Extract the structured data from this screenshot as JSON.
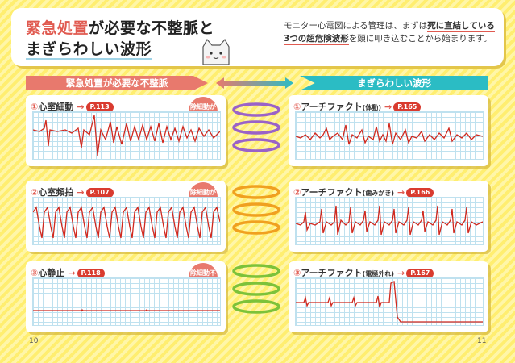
{
  "header": {
    "title_part1": "緊急処置",
    "title_part2": "が必要な不整脈と",
    "title_line2": "まぎらわしい波形",
    "intro_1": "モニター心電図による管理は、まずは",
    "intro_hl": "死に直結している3つの超危険波形",
    "intro_2": "を頭に叩き込むことから始まります。"
  },
  "banners": {
    "left": "緊急処置が必要な不整脈",
    "right": "まぎらわしい波形"
  },
  "left_cards": [
    {
      "num": "①",
      "name": "心室細動",
      "page": "P.113",
      "badge": "除細動が必要"
    },
    {
      "num": "②",
      "name": "心室頻拍",
      "page": "P.107",
      "badge": "除細動が必要"
    },
    {
      "num": "③",
      "name": "心静止",
      "page": "P.118",
      "badge": "除細動不可"
    }
  ],
  "right_cards": [
    {
      "num": "①",
      "name": "アーチファクト",
      "note": "(体動)",
      "page": "P.165"
    },
    {
      "num": "②",
      "name": "アーチファクト",
      "note": "(歯みがき)",
      "page": "P.166"
    },
    {
      "num": "③",
      "name": "アーチファクト",
      "note": "(電極外れ)",
      "page": "P.167"
    }
  ],
  "arrow_symbol": "→",
  "page_numbers": {
    "left": "10",
    "right": "11"
  },
  "colors": {
    "accent_red": "#e05a50",
    "banner_left": "#e8796d",
    "banner_right": "#2bbcc4",
    "coil_1": "#9a62c8",
    "coil_2": "#f0a020",
    "coil_3": "#7cc23a",
    "trace": "#d0281e"
  },
  "icons": {
    "coil": "binder-ring-icon",
    "mascot": "cat-mascot-icon",
    "connector": "double-arrow-icon"
  }
}
